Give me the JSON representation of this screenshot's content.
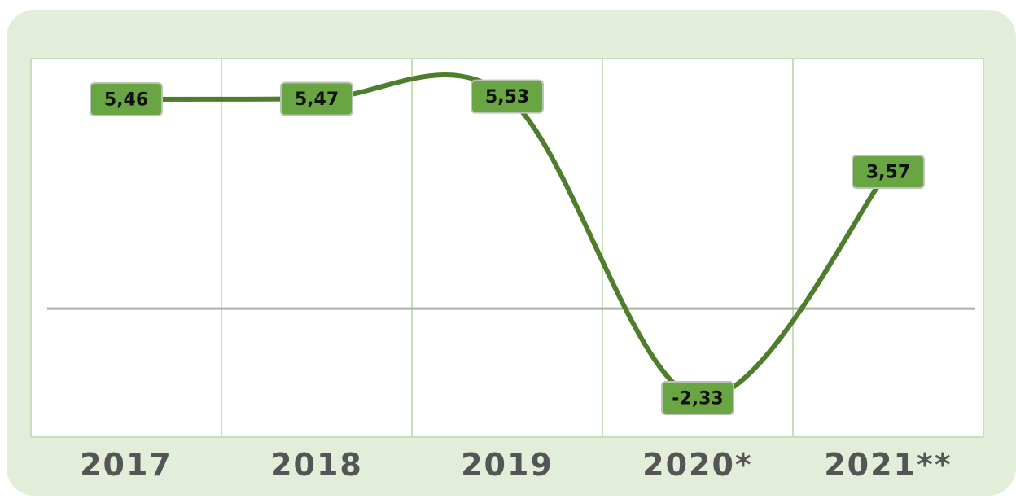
{
  "chart_data": {
    "type": "line",
    "categories": [
      "2017",
      "2018",
      "2019",
      "2020*",
      "2021**"
    ],
    "series": [
      {
        "color": "#4e7e2c",
        "values": [
          5.46,
          5.47,
          5.53,
          -2.33,
          3.57
        ],
        "value_labels": [
          "5,46",
          "5,47",
          "5,53",
          "-2,33",
          "3,57"
        ]
      }
    ],
    "ylim": [
      -3.35,
      6.52
    ]
  }
}
